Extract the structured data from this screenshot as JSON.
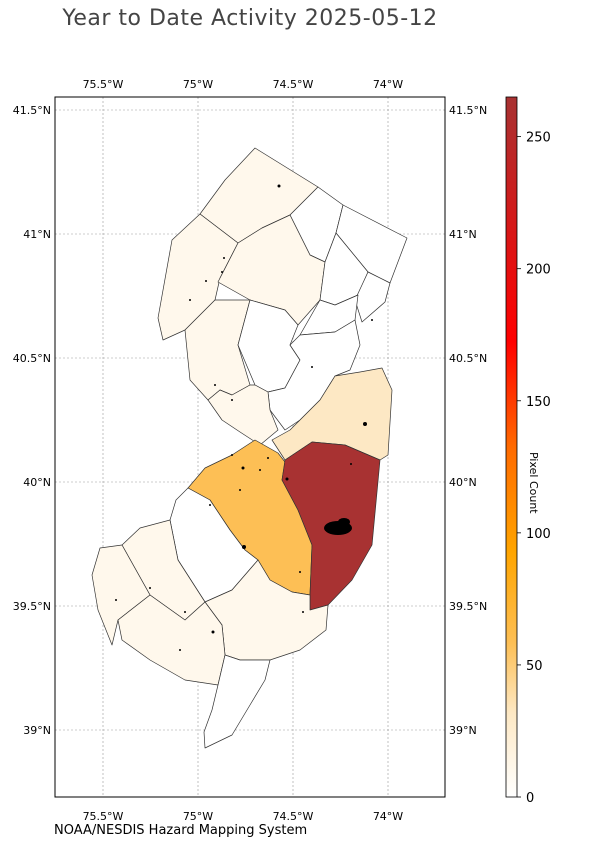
{
  "title": "Year to Date Activity 2025-05-12",
  "credit": "NOAA/NESDIS Hazard Mapping System",
  "map": {
    "region": "New Jersey",
    "lon_ticks": [
      {
        "value": -75.5,
        "label": "75.5°W"
      },
      {
        "value": -75.0,
        "label": "75°W"
      },
      {
        "value": -74.5,
        "label": "74.5°W"
      },
      {
        "value": -74.0,
        "label": "74°W"
      }
    ],
    "lat_ticks": [
      {
        "value": 41.5,
        "label": "41.5°N"
      },
      {
        "value": 41.0,
        "label": "41°N"
      },
      {
        "value": 40.5,
        "label": "40.5°N"
      },
      {
        "value": 40.0,
        "label": "40°N"
      },
      {
        "value": 39.5,
        "label": "39.5°N"
      },
      {
        "value": 39.0,
        "label": "39°N"
      }
    ],
    "grid": true,
    "colors": {
      "high": "#a83232",
      "mid": "#fdbf55",
      "low": "#fde8c4",
      "very_low": "#fff8ec",
      "zero": "#ffffff",
      "border": "#333333",
      "gridline": "#888888",
      "fire_marks": "#000000"
    }
  },
  "colorbar": {
    "label": "Pixel Count",
    "min": 0,
    "max": 265,
    "ticks": [
      0,
      50,
      100,
      150,
      200,
      250
    ],
    "stops": [
      "#ffffff",
      "#fde8c4",
      "#fdbf55",
      "#ffa500",
      "#ff6a00",
      "#ff0000",
      "#a83232"
    ]
  }
}
